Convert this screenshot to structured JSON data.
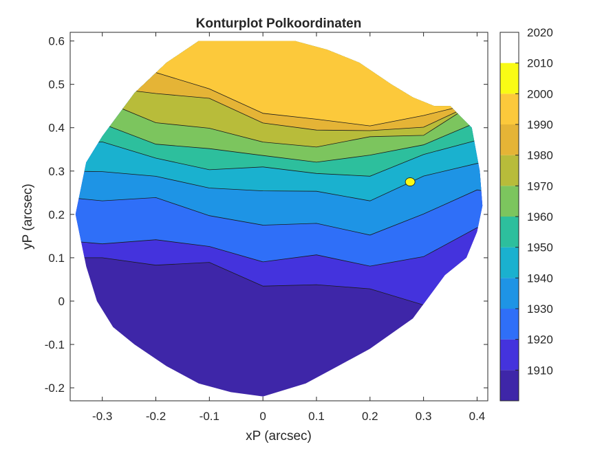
{
  "chart_data": {
    "type": "heatmap",
    "subtype": "filled-contour",
    "title": "Konturplot Polkoordinaten",
    "xlabel": "xP (arcsec)",
    "ylabel": "yP (arcsec)",
    "xlim": [
      -0.36,
      0.42
    ],
    "ylim": [
      -0.23,
      0.62
    ],
    "xticks": [
      -0.3,
      -0.2,
      -0.1,
      0,
      0.1,
      0.2,
      0.3,
      0.4
    ],
    "xtick_labels": [
      "-0.3",
      "-0.2",
      "-0.1",
      "0",
      "0.1",
      "0.2",
      "0.3",
      "0.4"
    ],
    "yticks": [
      -0.2,
      -0.1,
      0,
      0.1,
      0.2,
      0.3,
      0.4,
      0.5,
      0.6
    ],
    "ytick_labels": [
      "-0.2",
      "-0.1",
      "0",
      "0.1",
      "0.2",
      "0.3",
      "0.4",
      "0.5",
      "0.6"
    ],
    "colorbar": {
      "min": 1900,
      "max": 2020,
      "ticks": [
        1910,
        1920,
        1930,
        1940,
        1950,
        1960,
        1970,
        1980,
        1990,
        2000,
        2010,
        2020
      ],
      "tick_labels": [
        "1910",
        "1920",
        "1930",
        "1940",
        "1950",
        "1960",
        "1970",
        "1980",
        "1990",
        "2000",
        "2010",
        "2020"
      ],
      "colormap": "parula",
      "colors": [
        "#3e26a8",
        "#4433dd",
        "#2f6ff8",
        "#1e94e5",
        "#1ab1cf",
        "#2dbf9d",
        "#7cc55e",
        "#b8bc3a",
        "#e5b436",
        "#fcc93b",
        "#f9fb15"
      ]
    },
    "contour_levels": [
      1900,
      1910,
      1920,
      1930,
      1940,
      1950,
      1960,
      1970,
      1980,
      1990,
      2000,
      2010,
      2020
    ],
    "region_outline_x": [
      -0.35,
      -0.33,
      -0.3,
      -0.24,
      -0.18,
      -0.12,
      -0.06,
      0.0,
      0.06,
      0.12,
      0.18,
      0.24,
      0.28,
      0.32,
      0.35,
      0.39,
      0.405,
      0.41,
      0.4,
      0.38,
      0.34,
      0.28,
      0.2,
      0.14,
      0.08,
      0.0,
      -0.06,
      -0.12,
      -0.18,
      -0.24,
      -0.28,
      -0.31,
      -0.33
    ],
    "region_outline_y": [
      0.2,
      0.32,
      0.38,
      0.48,
      0.55,
      0.6,
      0.6,
      0.6,
      0.6,
      0.58,
      0.55,
      0.5,
      0.47,
      0.45,
      0.45,
      0.4,
      0.3,
      0.22,
      0.16,
      0.1,
      0.06,
      -0.04,
      -0.11,
      -0.15,
      -0.19,
      -0.22,
      -0.21,
      -0.19,
      -0.15,
      -0.1,
      -0.06,
      0.0,
      0.08
    ],
    "band_data": {
      "x": [
        -0.3,
        -0.2,
        -0.1,
        0.0,
        0.1,
        0.2,
        0.3,
        0.4
      ],
      "lower_boundary_1910_1920": [
        0.1,
        0.09,
        0.08,
        0.04,
        0.04,
        0.02,
        0.0,
        0.12
      ],
      "band_1920_1930": [
        0.14,
        0.14,
        0.12,
        0.1,
        0.1,
        0.08,
        0.11,
        0.16
      ],
      "band_1930_1940": [
        0.24,
        0.23,
        0.2,
        0.18,
        0.17,
        0.16,
        0.2,
        0.25
      ],
      "band_1940_1950": [
        0.3,
        0.28,
        0.27,
        0.25,
        0.25,
        0.24,
        0.28,
        0.32
      ],
      "band_1950_1960": [
        0.36,
        0.33,
        0.31,
        0.3,
        0.3,
        0.29,
        0.33,
        0.38
      ],
      "band_1960_1970": [
        0.4,
        0.37,
        0.35,
        0.33,
        0.33,
        0.33,
        0.36,
        0.42
      ],
      "band_1970_1980": [
        0.46,
        0.42,
        0.39,
        0.37,
        0.36,
        0.37,
        0.39,
        0.46
      ],
      "band_1980_1990": [
        0.5,
        0.48,
        0.46,
        0.42,
        0.39,
        0.39,
        0.41,
        0.45
      ],
      "band_1990_2000": [
        0.54,
        0.52,
        0.49,
        0.44,
        0.41,
        0.41,
        0.43,
        0.45
      ]
    },
    "grid": false,
    "legend": "colorbar-right"
  }
}
